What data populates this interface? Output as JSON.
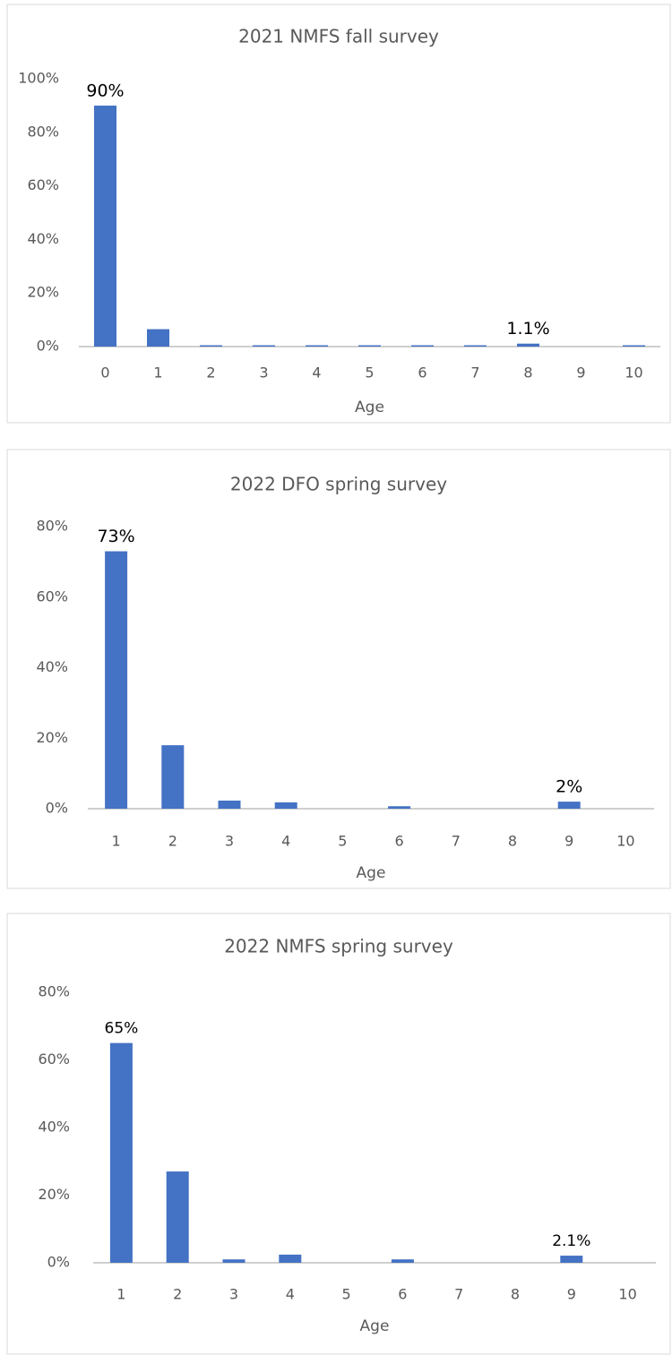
{
  "chart_data": [
    {
      "type": "bar",
      "title": "2021 NMFS fall survey",
      "x_label": "Age",
      "categories": [
        "0",
        "1",
        "2",
        "3",
        "4",
        "5",
        "6",
        "7",
        "8",
        "9",
        "10"
      ],
      "values": [
        90,
        6.5,
        0.5,
        0.5,
        0.5,
        0.5,
        0.5,
        0.5,
        1.1,
        0,
        0.5
      ],
      "value_labels": [
        "90%",
        null,
        null,
        null,
        null,
        null,
        null,
        null,
        "1.1%",
        null,
        null
      ],
      "color": "#4472c4",
      "ylim": [
        0,
        100
      ],
      "yticks": [
        {
          "value": 0,
          "label": "0%"
        },
        {
          "value": 20,
          "label": "20%"
        },
        {
          "value": 40,
          "label": "40%"
        },
        {
          "value": 60,
          "label": "60%"
        },
        {
          "value": 80,
          "label": "80%"
        },
        {
          "value": 100,
          "label": "100%"
        }
      ],
      "grid": false
    },
    {
      "type": "bar",
      "title": "2022 DFO spring survey",
      "x_label": "Age",
      "categories": [
        "1",
        "2",
        "3",
        "4",
        "5",
        "6",
        "7",
        "8",
        "9",
        "10"
      ],
      "values": [
        73,
        18,
        2.3,
        1.8,
        0,
        0.7,
        0,
        0,
        2,
        0
      ],
      "value_labels": [
        "73%",
        null,
        null,
        null,
        null,
        null,
        null,
        null,
        "2%",
        null
      ],
      "color": "#4472c4",
      "ylim": [
        0,
        80
      ],
      "yticks": [
        {
          "value": 0,
          "label": "0%"
        },
        {
          "value": 20,
          "label": "20%"
        },
        {
          "value": 40,
          "label": "40%"
        },
        {
          "value": 60,
          "label": "60%"
        },
        {
          "value": 80,
          "label": "80%"
        }
      ],
      "grid": false
    },
    {
      "type": "bar",
      "title": "2022 NMFS spring survey",
      "x_label": "Age",
      "categories": [
        "1",
        "2",
        "3",
        "4",
        "5",
        "6",
        "7",
        "8",
        "9",
        "10"
      ],
      "values": [
        65,
        27,
        1.0,
        2.4,
        0,
        1.0,
        0,
        0,
        2.1,
        0
      ],
      "value_labels": [
        "65%",
        null,
        null,
        null,
        null,
        null,
        null,
        null,
        "2.1%",
        null
      ],
      "color": "#4472c4",
      "ylim": [
        0,
        80
      ],
      "yticks": [
        {
          "value": 0,
          "label": "0%"
        },
        {
          "value": 20,
          "label": "20%"
        },
        {
          "value": 40,
          "label": "40%"
        },
        {
          "value": 60,
          "label": "60%"
        },
        {
          "value": 80,
          "label": "80%"
        }
      ],
      "grid": false
    }
  ]
}
